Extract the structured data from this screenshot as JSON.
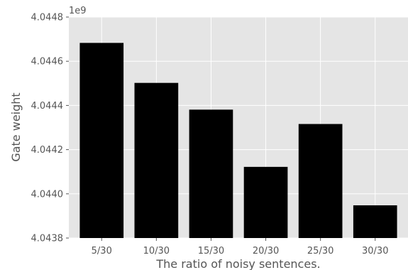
{
  "chart_data": {
    "type": "bar",
    "categories": [
      "5/30",
      "10/30",
      "15/30",
      "20/30",
      "25/30",
      "30/30"
    ],
    "values": [
      4044683000,
      4044502000,
      4044381000,
      4044122000,
      4044316000,
      4043948000
    ],
    "xlabel": "The ratio of noisy sentences.",
    "ylabel": "Gate weight",
    "ylim": [
      4043800000,
      4044800000
    ],
    "yticks": [
      4043800000,
      4044000000,
      4044200000,
      4044400000,
      4044600000,
      4044800000
    ],
    "ytick_labels": [
      "4.0438",
      "4.0440",
      "4.0442",
      "4.0444",
      "4.0446",
      "4.0448"
    ],
    "y_offset_label": "1e9",
    "grid": true,
    "style": "ggplot",
    "colors": {
      "bar": "#000000",
      "background": "#e5e5e5",
      "grid": "#ffffff",
      "text": "#555555"
    }
  }
}
